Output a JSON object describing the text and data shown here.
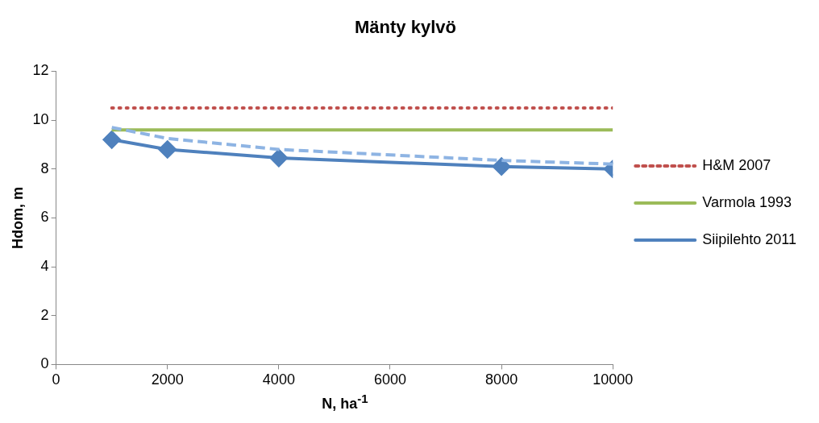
{
  "chart_data": {
    "type": "line",
    "title": "Mänty kylvö",
    "xlabel": "N, ha$^{-1}$",
    "ylabel": "Hdom, m",
    "x": [
      1000,
      2000,
      4000,
      8000,
      10000
    ],
    "series": [
      {
        "color": "#8eb4e3",
        "line_style": "dashed",
        "marker": "none",
        "values": [
          9.7,
          9.25,
          8.8,
          8.35,
          8.2
        ]
      },
      {
        "name": "H&M 2007",
        "color": "#c0504d",
        "line_style": "dotted",
        "marker": "none",
        "values": [
          10.5,
          10.5,
          10.5,
          10.5,
          10.5
        ]
      },
      {
        "name": "Varmola 1993",
        "color": "#9bbb59",
        "line_style": "solid",
        "marker": "none",
        "values": [
          9.6,
          9.6,
          9.6,
          9.6,
          9.6
        ]
      },
      {
        "name": "Siipilehto 2011",
        "color": "#4f81bd",
        "line_style": "solid",
        "marker": "diamond",
        "values": [
          9.2,
          8.8,
          8.45,
          8.1,
          8.0
        ]
      }
    ],
    "xlim": [
      0,
      10000
    ],
    "xticks": [
      0,
      2000,
      4000,
      6000,
      8000,
      10000
    ],
    "ylim": [
      0,
      12
    ],
    "yticks": [
      0,
      2,
      4,
      6,
      8,
      10,
      12
    ],
    "grid": false,
    "legend": "right"
  }
}
